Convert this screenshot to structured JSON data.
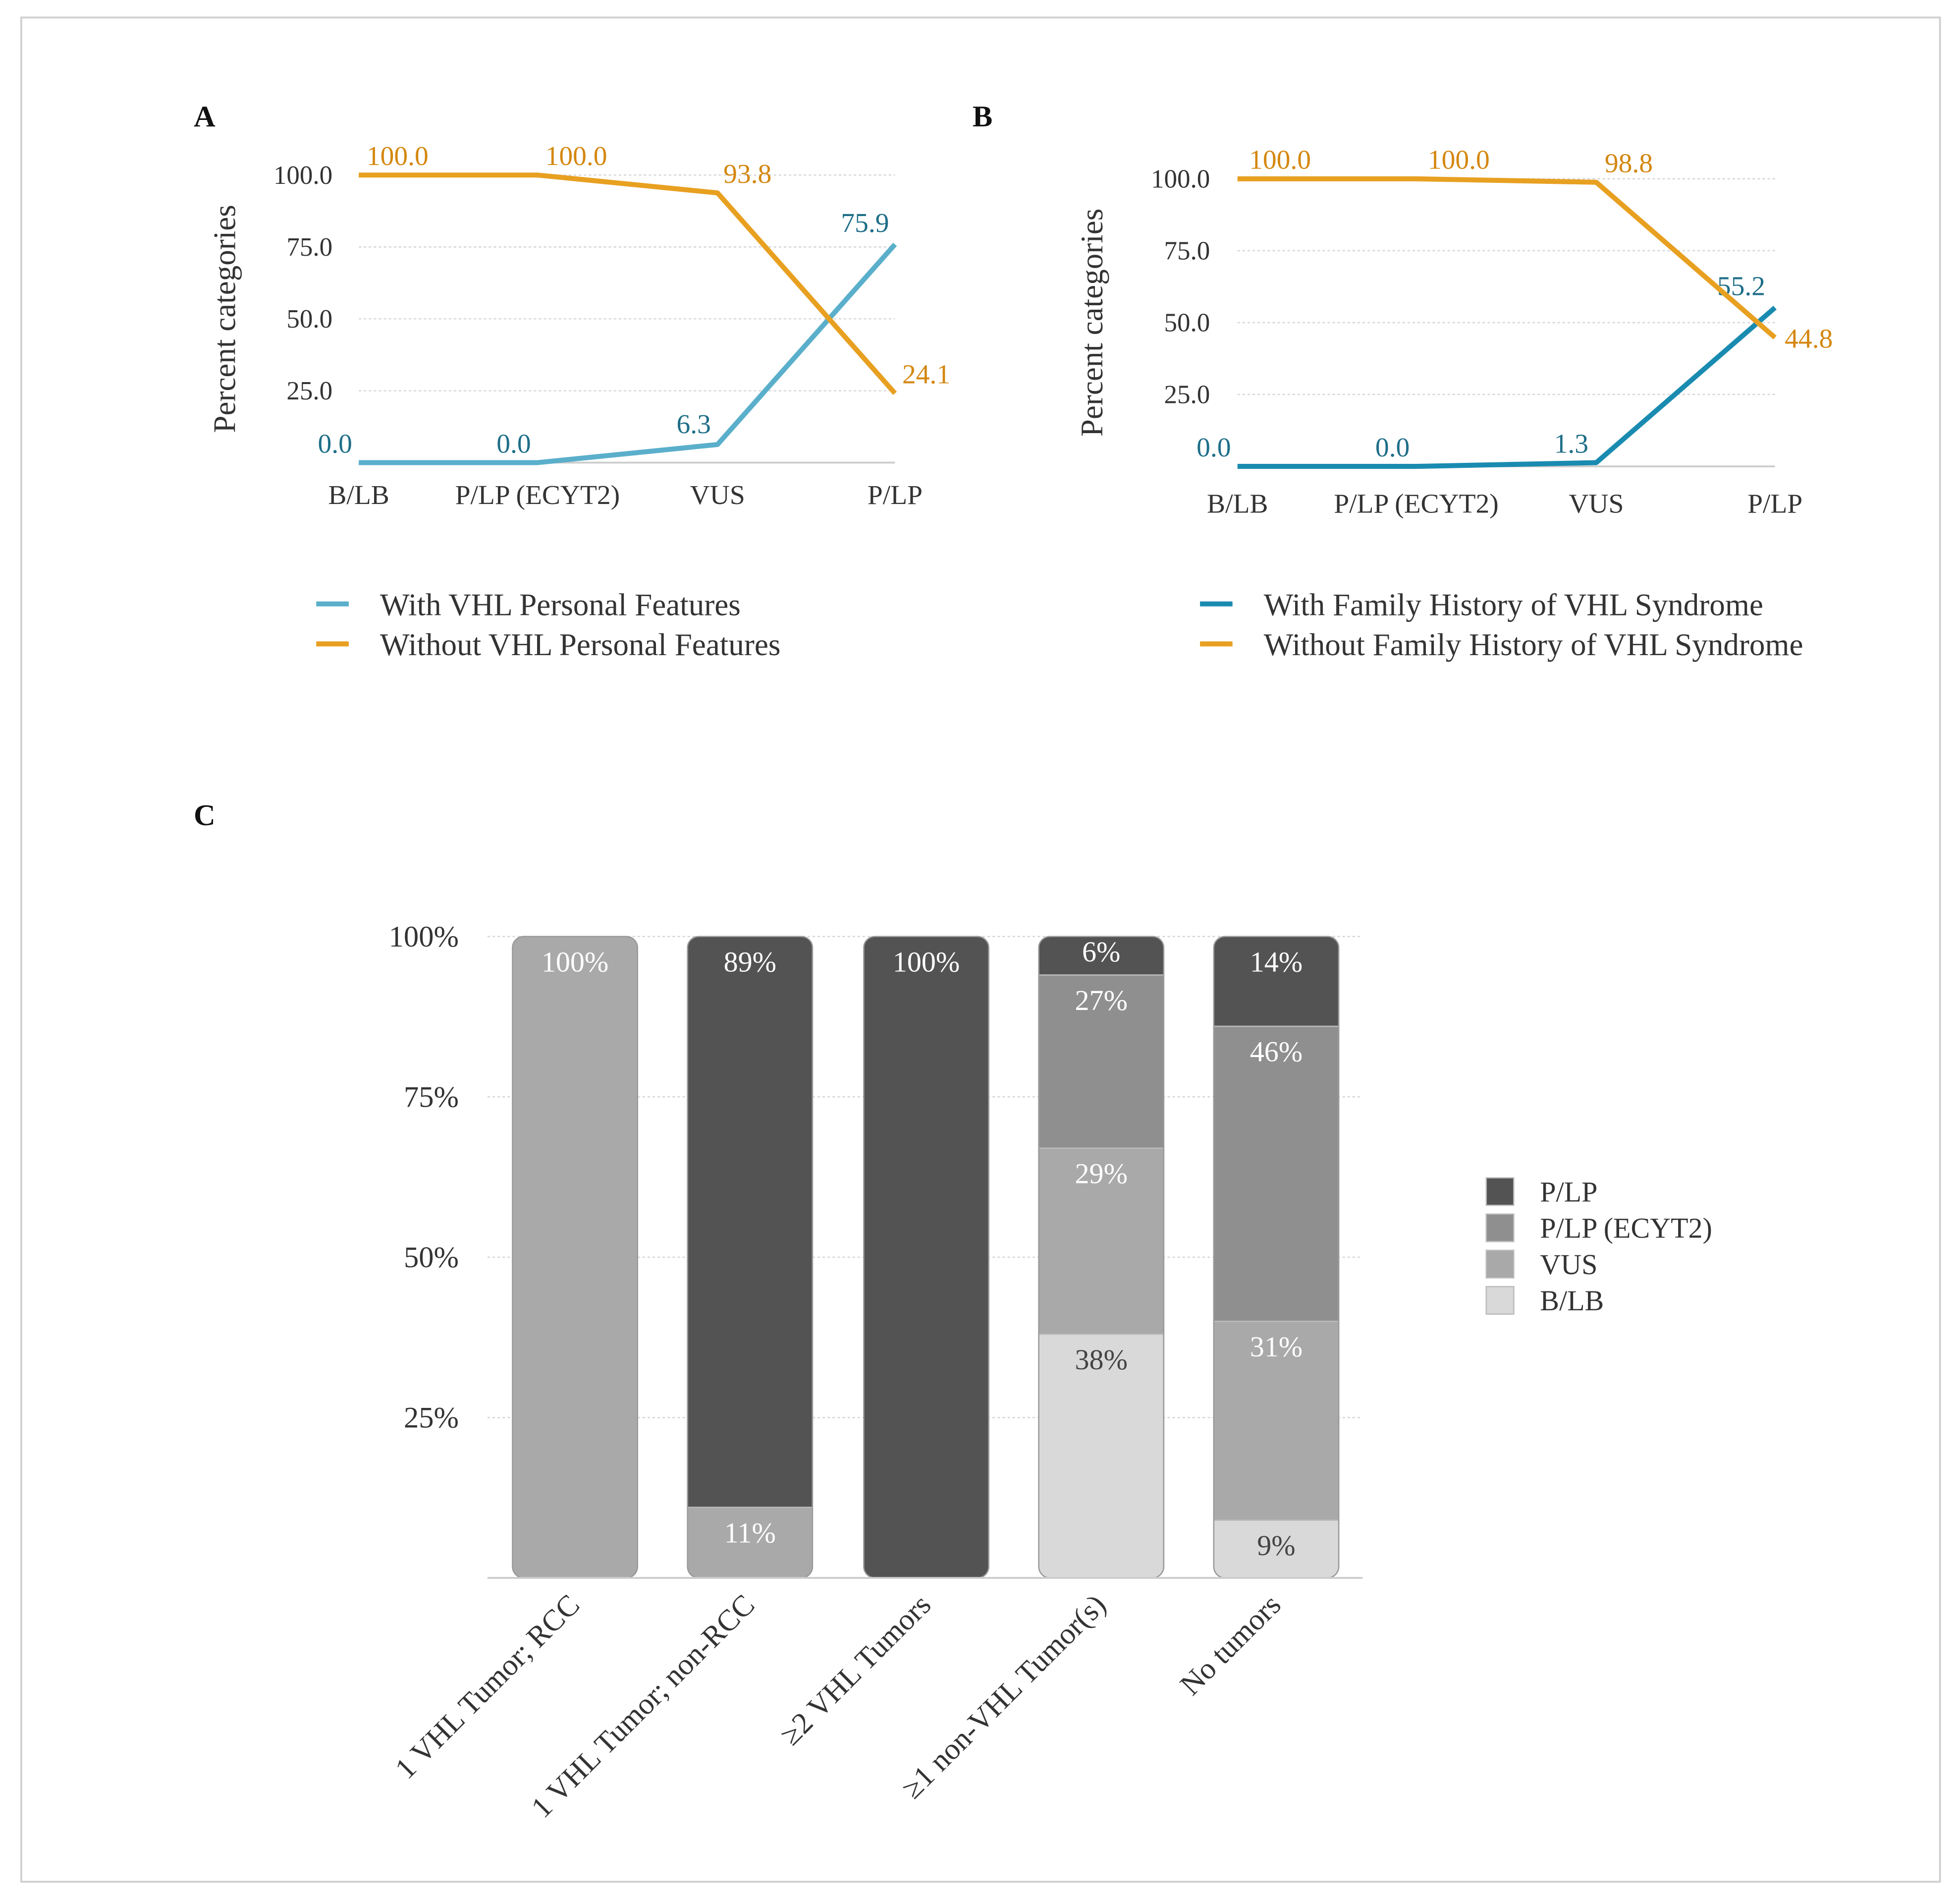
{
  "colors": {
    "orange": "#E8A021",
    "orange_text": "#D4870F",
    "teal_a": "#5AAFCB",
    "teal_b": "#1A8BB0",
    "teal_text": "#1E6E88",
    "P/LP": "#535353",
    "P/LP (ECYT2)": "#8f8f8f",
    "VUS": "#a9a9a9",
    "B/LB": "#d9d9d9"
  },
  "chart_data": [
    {
      "panel": "A",
      "type": "line",
      "ylabel": "Percent categories",
      "xlabel": "",
      "categories": [
        "B/LB",
        "P/LP (ECYT2)",
        "VUS",
        "P/LP"
      ],
      "yticks": [
        "25.0",
        "50.0",
        "75.0",
        "100.0"
      ],
      "ylim": [
        0,
        100
      ],
      "grid": true,
      "legend_position": "bottom",
      "series": [
        {
          "name": "With VHL Personal Features",
          "values": [
            0.0,
            0.0,
            6.3,
            75.9
          ],
          "labels": [
            "0.0",
            "0.0",
            "6.3",
            "75.9"
          ]
        },
        {
          "name": "Without VHL Personal Features",
          "values": [
            100.0,
            100.0,
            93.8,
            24.1
          ],
          "labels": [
            "100.0",
            "100.0",
            "93.8",
            "24.1"
          ]
        }
      ]
    },
    {
      "panel": "B",
      "type": "line",
      "ylabel": "Percent categories",
      "xlabel": "",
      "categories": [
        "B/LB",
        "P/LP (ECYT2)",
        "VUS",
        "P/LP"
      ],
      "yticks": [
        "25.0",
        "50.0",
        "75.0",
        "100.0"
      ],
      "ylim": [
        0,
        100
      ],
      "grid": true,
      "legend_position": "bottom",
      "series": [
        {
          "name": "With Family History of VHL Syndrome",
          "values": [
            0.0,
            0.0,
            1.3,
            55.2
          ],
          "labels": [
            "0.0",
            "0.0",
            "1.3",
            "55.2"
          ]
        },
        {
          "name": "Without Family History of VHL Syndrome",
          "values": [
            100.0,
            100.0,
            98.8,
            44.8
          ],
          "labels": [
            "100.0",
            "100.0",
            "98.8",
            "44.8"
          ]
        }
      ]
    },
    {
      "panel": "C",
      "type": "bar",
      "stacked": true,
      "categories": [
        "1 VHL Tumor; RCC",
        "1 VHL Tumor; non-RCC",
        "≥2 VHL Tumors",
        "≥1 non-VHL Tumor(s)",
        "No tumors"
      ],
      "yticks": [
        "25%",
        "50%",
        "75%",
        "100%"
      ],
      "ylim": [
        0,
        100
      ],
      "grid": true,
      "legend_position": "right",
      "legend": [
        "P/LP",
        "P/LP (ECYT2)",
        "VUS",
        "B/LB"
      ],
      "series": [
        {
          "name": "B/LB",
          "values": [
            0,
            0,
            0,
            38,
            9
          ],
          "labels": [
            "",
            "",
            "",
            "38%",
            "9%"
          ]
        },
        {
          "name": "VUS",
          "values": [
            100,
            11,
            0,
            29,
            31
          ],
          "labels": [
            "100%",
            "11%",
            "",
            "29%",
            "31%"
          ]
        },
        {
          "name": "P/LP (ECYT2)",
          "values": [
            0,
            0,
            0,
            27,
            46
          ],
          "labels": [
            "",
            "",
            "",
            "27%",
            "46%"
          ]
        },
        {
          "name": "P/LP",
          "values": [
            0,
            89,
            100,
            6,
            14
          ],
          "labels": [
            "",
            "89%",
            "100%",
            "6%",
            "14%"
          ]
        }
      ]
    }
  ]
}
